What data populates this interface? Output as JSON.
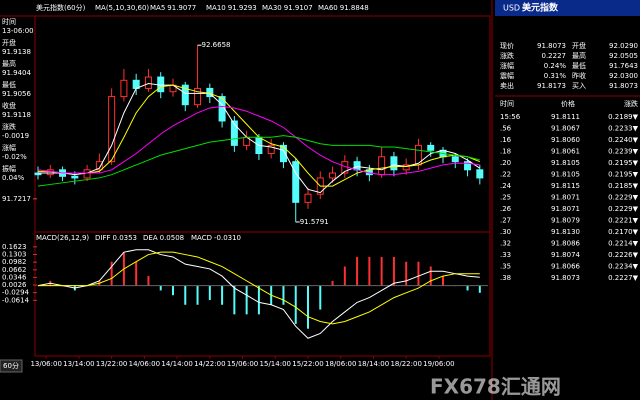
{
  "header": {
    "title": "美元指数(60分)"
  },
  "info": {
    "rows": [
      {
        "label": "时间",
        "value": "13-06:00",
        "color": "#ffffff"
      },
      {
        "label": "开盘",
        "value": "91.9138",
        "color": "#ff4040"
      },
      {
        "label": "最高",
        "value": "91.9404",
        "color": "#ff4040"
      },
      {
        "label": "最低",
        "value": "91.9056",
        "color": "#40ff40"
      },
      {
        "label": "收盘",
        "value": "91.9118",
        "color": "#40ff40"
      },
      {
        "label": "涨跌",
        "value": "-0.0019",
        "color": "#40ff40"
      },
      {
        "label": "涨幅",
        "value": "-0.02%",
        "color": "#40ff40"
      },
      {
        "label": "振幅",
        "value": "0.04%",
        "color": "#ffffff"
      }
    ]
  },
  "quote_header": {
    "code": "USD",
    "name": "美元指数"
  },
  "quote": {
    "rows": [
      [
        "现价",
        "91.8073",
        "开盘",
        "92.0290"
      ],
      [
        "涨跌",
        "0.2227",
        "最高",
        "92.0505"
      ],
      [
        "涨幅",
        "0.24%",
        "最低",
        "91.7643"
      ],
      [
        "震幅",
        "0.31%",
        "昨收",
        "92.0300"
      ],
      [
        "卖出",
        "91.8173",
        "买入",
        "91.8073"
      ]
    ]
  },
  "trades": {
    "headers": [
      "时间",
      "价格",
      "涨跌"
    ],
    "rows": [
      [
        "15:56",
        "91.8111",
        "0.2189▼"
      ],
      [
        ".56",
        "91.8067",
        "0.2233▼"
      ],
      [
        ".16",
        "91.8060",
        "0.2240▼"
      ],
      [
        ".18",
        "91.8061",
        "0.2239▼"
      ],
      [
        ".20",
        "91.8105",
        "0.2195▼"
      ],
      [
        ".22",
        "91.8105",
        "0.2195▼"
      ],
      [
        ".24",
        "91.8115",
        "0.2185▼"
      ],
      [
        ".25",
        "91.8071",
        "0.2229▼"
      ],
      [
        ".26",
        "91.8071",
        "0.2229▼"
      ],
      [
        ".27",
        "91.8079",
        "0.2221▼"
      ],
      [
        ".30",
        "91.8130",
        "0.2170▼"
      ],
      [
        ".32",
        "91.8086",
        "0.2214▼"
      ],
      [
        ".33",
        "91.8074",
        "0.2226▼"
      ],
      [
        ".35",
        "91.8066",
        "0.2234▼"
      ],
      [
        ".38",
        "91.8073",
        "0.2227▼"
      ]
    ]
  },
  "tab": "60分",
  "watermark": "FX678汇通网",
  "chart_data": [
    {
      "type": "candlestick",
      "legend_title": "MA(5,10,30,60)",
      "up_color": "#ff3030",
      "down_color": "#54fcfc",
      "x": [
        0,
        3,
        6,
        9,
        12,
        15,
        18,
        21,
        24,
        27,
        30,
        33,
        36,
        39,
        42,
        45,
        48,
        51,
        54,
        57,
        60,
        63,
        66,
        69,
        72,
        75,
        78,
        81,
        84,
        87,
        90,
        93,
        96,
        99,
        102,
        105,
        108
      ],
      "open": [
        91.88,
        91.87,
        91.9,
        91.86,
        91.85,
        91.9,
        91.95,
        92.35,
        92.45,
        92.4,
        92.47,
        92.38,
        92.42,
        92.3,
        92.4,
        92.35,
        92.2,
        92.05,
        92.1,
        92.0,
        92.05,
        91.95,
        91.7,
        91.75,
        91.85,
        91.88,
        91.95,
        91.9,
        91.87,
        91.98,
        91.9,
        91.93,
        92.05,
        92.02,
        91.98,
        91.95,
        91.9
      ],
      "high": [
        91.92,
        91.93,
        91.92,
        91.89,
        91.93,
        92.0,
        92.4,
        92.52,
        92.49,
        92.52,
        92.5,
        92.46,
        92.44,
        92.6658,
        92.43,
        92.37,
        92.23,
        92.14,
        92.12,
        92.09,
        92.07,
        91.97,
        91.79,
        91.89,
        91.92,
        91.99,
        91.98,
        91.93,
        92.04,
        92.01,
        91.97,
        92.09,
        92.07,
        92.04,
        92.0,
        91.97,
        91.93
      ],
      "low": [
        91.84,
        91.85,
        91.83,
        91.81,
        91.83,
        91.88,
        91.93,
        92.32,
        92.36,
        92.38,
        92.34,
        92.35,
        92.26,
        92.28,
        92.31,
        92.16,
        92.01,
        92.02,
        91.96,
        91.97,
        91.91,
        91.5791,
        91.66,
        91.72,
        91.82,
        91.85,
        91.86,
        91.83,
        91.85,
        91.86,
        91.87,
        91.9,
        91.98,
        91.94,
        91.91,
        91.86,
        91.81
      ],
      "close": [
        91.87,
        91.9,
        91.86,
        91.85,
        91.9,
        91.95,
        92.35,
        92.45,
        92.4,
        92.47,
        92.38,
        92.42,
        92.3,
        92.4,
        92.35,
        92.2,
        92.05,
        92.1,
        92.0,
        92.05,
        91.95,
        91.7,
        91.75,
        91.85,
        91.88,
        91.95,
        91.9,
        91.87,
        91.98,
        91.9,
        91.93,
        92.05,
        92.02,
        91.98,
        91.95,
        91.9,
        91.85
      ],
      "series": [
        {
          "name": "MA5",
          "color": "#ffffff",
          "current": "91.9077",
          "values": [
            91.88,
            91.88,
            91.88,
            91.87,
            91.88,
            91.91,
            92.05,
            92.25,
            92.4,
            92.43,
            92.42,
            92.42,
            92.37,
            92.37,
            92.37,
            92.3,
            92.18,
            92.1,
            92.05,
            92.04,
            92.02,
            91.88,
            91.78,
            91.76,
            91.83,
            91.89,
            91.92,
            91.91,
            91.9,
            91.93,
            91.92,
            91.94,
            92.0,
            92.02,
            92.0,
            91.96,
            91.91
          ]
        },
        {
          "name": "MA10",
          "color": "#ffff00",
          "current": "91.9293",
          "values": [
            91.89,
            91.89,
            91.88,
            91.88,
            91.88,
            91.89,
            91.96,
            92.1,
            92.25,
            92.35,
            92.41,
            92.42,
            92.4,
            92.38,
            92.37,
            92.34,
            92.26,
            92.18,
            92.1,
            92.06,
            92.04,
            91.97,
            91.88,
            91.8,
            91.8,
            91.84,
            91.88,
            91.9,
            91.91,
            91.92,
            91.92,
            91.93,
            91.96,
            91.98,
            91.99,
            91.98,
            91.95
          ]
        },
        {
          "name": "MA30",
          "color": "#ff00ff",
          "current": "91.9107",
          "values": [
            91.9,
            91.89,
            91.88,
            91.88,
            91.88,
            91.88,
            91.9,
            91.95,
            92.0,
            92.06,
            92.12,
            92.17,
            92.21,
            92.25,
            92.28,
            92.29,
            92.28,
            92.26,
            92.23,
            92.2,
            92.16,
            92.1,
            92.04,
            91.99,
            91.95,
            91.92,
            91.9,
            91.88,
            91.87,
            91.87,
            91.88,
            91.89,
            91.91,
            91.93,
            91.94,
            91.94,
            91.93
          ]
        },
        {
          "name": "MA60",
          "color": "#00e000",
          "current": "91.8848",
          "values": [
            91.8,
            91.81,
            91.82,
            91.83,
            91.84,
            91.85,
            91.87,
            91.9,
            91.93,
            91.96,
            91.99,
            92.01,
            92.03,
            92.05,
            92.07,
            92.08,
            92.09,
            92.1,
            92.1,
            92.1,
            92.11,
            92.1,
            92.08,
            92.06,
            92.05,
            92.05,
            92.05,
            92.05,
            92.04,
            92.04,
            92.03,
            92.02,
            92.01,
            92.0,
            91.99,
            91.98,
            91.96
          ]
        }
      ],
      "annotations": [
        {
          "x": 39,
          "value": 92.6658
        },
        {
          "x": 63,
          "value": 91.5791
        }
      ],
      "xlim": [
        0,
        110
      ],
      "ylim": [
        91.53,
        92.71
      ],
      "yticks": [
        91.7217
      ],
      "xticks": [
        {
          "value": 2,
          "label": "13/06:00"
        },
        {
          "value": 10,
          "label": "13/14:00"
        },
        {
          "value": 18,
          "label": "13/22:00"
        },
        {
          "value": 26,
          "label": "14/06:00"
        },
        {
          "value": 34,
          "label": "14/14:00"
        },
        {
          "value": 42,
          "label": "14/22:00"
        },
        {
          "value": 50,
          "label": "15/06:00"
        },
        {
          "value": 58,
          "label": "15/14:00"
        },
        {
          "value": 66,
          "label": "15/22:00"
        },
        {
          "value": 74,
          "label": "18/06:00"
        },
        {
          "value": 82,
          "label": "18/14:00"
        },
        {
          "value": 90,
          "label": "18/22:00"
        },
        {
          "value": 98,
          "label": "19/06:00"
        }
      ]
    },
    {
      "type": "macd",
      "title": "MACD(26,12,9)",
      "x": [
        0,
        3,
        6,
        9,
        12,
        15,
        18,
        21,
        24,
        27,
        30,
        33,
        36,
        39,
        42,
        45,
        48,
        51,
        54,
        57,
        60,
        63,
        66,
        69,
        72,
        75,
        78,
        81,
        84,
        87,
        90,
        93,
        96,
        99,
        102,
        105,
        108
      ],
      "series": [
        {
          "name": "DIFF",
          "color": "#ffffff",
          "current": "0.0353",
          "values": [
            0.0,
            0.01,
            0.0,
            -0.01,
            0.0,
            0.02,
            0.08,
            0.14,
            0.15,
            0.15,
            0.13,
            0.12,
            0.09,
            0.08,
            0.07,
            0.04,
            -0.01,
            -0.04,
            -0.07,
            -0.08,
            -0.1,
            -0.17,
            -0.22,
            -0.2,
            -0.15,
            -0.11,
            -0.07,
            -0.05,
            -0.02,
            0.01,
            0.02,
            0.04,
            0.06,
            0.06,
            0.05,
            0.04,
            0.035
          ]
        },
        {
          "name": "DEA",
          "color": "#ffff00",
          "current": "0.0508",
          "values": [
            0.0,
            0.0,
            0.0,
            0.0,
            0.0,
            0.01,
            0.03,
            0.07,
            0.1,
            0.13,
            0.14,
            0.14,
            0.13,
            0.12,
            0.1,
            0.08,
            0.05,
            0.02,
            -0.01,
            -0.04,
            -0.06,
            -0.09,
            -0.13,
            -0.15,
            -0.16,
            -0.15,
            -0.13,
            -0.11,
            -0.08,
            -0.05,
            -0.03,
            -0.01,
            0.02,
            0.04,
            0.05,
            0.05,
            0.05
          ]
        },
        {
          "name": "MACD",
          "color": "#ff00ff",
          "current": "-0.0310",
          "values": [
            0,
            0.02,
            0,
            -0.02,
            0,
            0.02,
            0.1,
            0.14,
            0.1,
            0.04,
            -0.02,
            -0.04,
            -0.08,
            -0.08,
            -0.06,
            -0.08,
            -0.12,
            -0.12,
            -0.12,
            -0.08,
            -0.08,
            -0.16,
            -0.18,
            -0.1,
            0.02,
            0.08,
            0.12,
            0.12,
            0.12,
            0.12,
            0.1,
            0.1,
            0.08,
            0.04,
            0,
            -0.02,
            -0.03
          ]
        }
      ],
      "ylim": [
        -0.29,
        0.17
      ],
      "yticks": [
        0.1623,
        0.1303,
        0.0982,
        0.0662,
        0.0346,
        0.0026,
        -0.0294,
        -0.0614
      ]
    }
  ]
}
